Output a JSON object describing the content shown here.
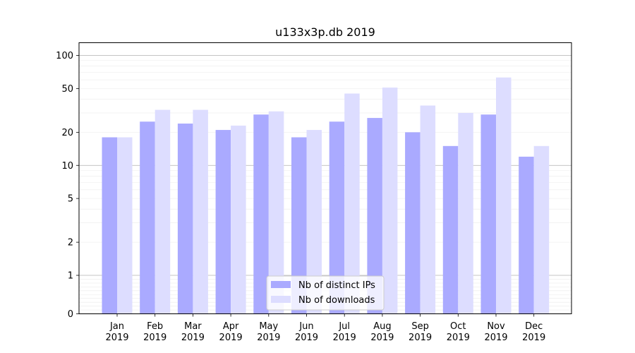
{
  "chart_data": {
    "type": "bar",
    "title": "u133x3p.db 2019",
    "xlabel": "",
    "ylabel": "",
    "y_scale": "symlog",
    "ylim": [
      0,
      120
    ],
    "y_ticks": [
      0,
      1,
      2,
      5,
      10,
      20,
      50,
      100
    ],
    "grid": true,
    "legend_position": "bottom-center",
    "categories": [
      [
        "Jan",
        "2019"
      ],
      [
        "Feb",
        "2019"
      ],
      [
        "Mar",
        "2019"
      ],
      [
        "Apr",
        "2019"
      ],
      [
        "May",
        "2019"
      ],
      [
        "Jun",
        "2019"
      ],
      [
        "Jul",
        "2019"
      ],
      [
        "Aug",
        "2019"
      ],
      [
        "Sep",
        "2019"
      ],
      [
        "Oct",
        "2019"
      ],
      [
        "Nov",
        "2019"
      ],
      [
        "Dec",
        "2019"
      ]
    ],
    "series": [
      {
        "name": "Nb of distinct IPs",
        "color": "#aaaaff",
        "values": [
          18,
          25,
          24,
          21,
          29,
          18,
          25,
          27,
          20,
          15,
          29,
          12
        ]
      },
      {
        "name": "Nb of downloads",
        "color": "#ddddff",
        "values": [
          18,
          32,
          32,
          23,
          31,
          21,
          45,
          51,
          35,
          30,
          63,
          15
        ]
      }
    ]
  }
}
